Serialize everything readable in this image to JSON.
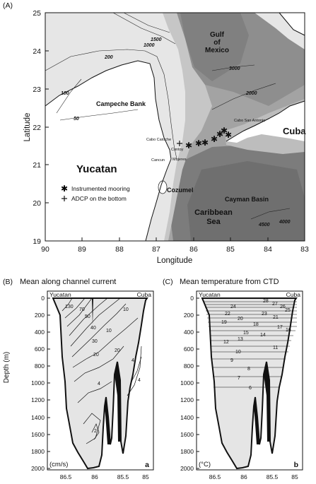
{
  "panel_a": {
    "label": "(A)",
    "xlabel": "Longitude",
    "ylabel": "Latitude",
    "x_ticks": [
      "90",
      "89",
      "88",
      "87",
      "86",
      "85",
      "84",
      "83"
    ],
    "y_ticks": [
      "25",
      "24",
      "23",
      "22",
      "21",
      "20",
      "19"
    ],
    "place_labels": {
      "gulf": [
        "Gulf",
        "of",
        "Mexico"
      ],
      "campeche": "Campeche Bank",
      "yucatan": "Yucatan",
      "cuba": "Cuba",
      "cozumel": "Cozumel",
      "cayman": "Cayman Basin",
      "caribbean": [
        "Caribbean",
        "Sea"
      ],
      "cabo_catoche": "Cabo Catoche",
      "contoy": "Contoy",
      "cancun": "Cancun",
      "mujeres": "Mujeres",
      "cabo_san_antonio": "Cabo San Antonio"
    },
    "contour_labels": [
      "1500",
      "1000",
      "200",
      "3000",
      "2000",
      "100",
      "50",
      "4500",
      "4000"
    ],
    "legend": {
      "mooring": "Instrumented mooring",
      "adcp": "ADCP on the bottom"
    }
  },
  "panel_b": {
    "label": "(B)",
    "title": "Mean along channel current",
    "left_label": "Yucatan",
    "right_label": "Cuba",
    "unit_label": "(cm/s)",
    "corner_letter": "a",
    "ylabel": "Depth (m)",
    "y_ticks": [
      "0",
      "200",
      "400",
      "600",
      "800",
      "1000",
      "1200",
      "1400",
      "1600",
      "1800",
      "2000"
    ],
    "x_ticks": [
      "86.5",
      "86",
      "85.5",
      "85"
    ],
    "contour_labels": [
      "130",
      "70",
      "50",
      "40",
      "30",
      "20",
      "10",
      "20",
      "10",
      "4",
      "4",
      "2",
      "4"
    ]
  },
  "panel_c": {
    "label": "(C)",
    "title": "Mean temperature from CTD",
    "left_label": "Yucatan",
    "right_label": "Cuba",
    "unit_label": "(°C)",
    "corner_letter": "b",
    "y_ticks": [
      "0",
      "200",
      "400",
      "600",
      "800",
      "1000",
      "1200",
      "1400",
      "1600",
      "1800",
      "2000"
    ],
    "x_ticks": [
      "86.5",
      "86",
      "85.5",
      "85"
    ],
    "contour_labels": [
      "28",
      "27",
      "26",
      "25",
      "24",
      "23",
      "22",
      "21",
      "20",
      "19",
      "18",
      "17",
      "16",
      "15",
      "14",
      "13",
      "12",
      "11",
      "10",
      "9",
      "8",
      "7",
      "6"
    ]
  },
  "colors": {
    "land": "#ffffff",
    "shelf": "#e6e6e6",
    "slope": "#c6c6c6",
    "deep": "#a3a3a3",
    "abyss": "#7c7c7c",
    "section_water": "#e5e5e5"
  },
  "icons": [
    "star-icon",
    "cross-icon"
  ]
}
